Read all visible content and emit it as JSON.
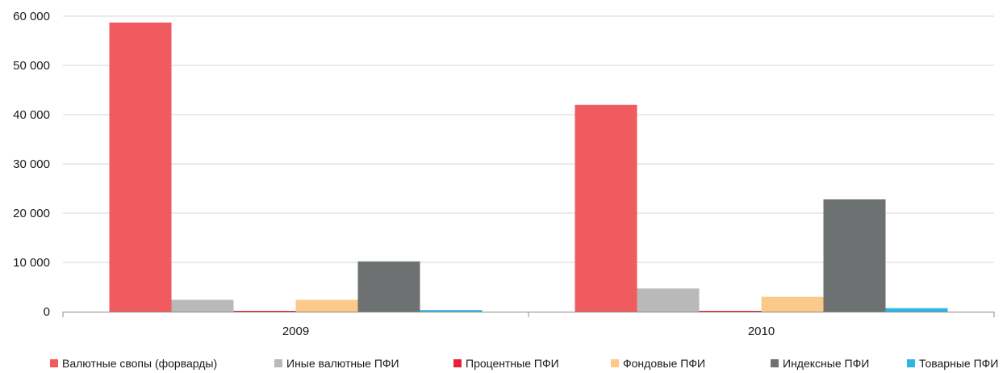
{
  "chart_data": {
    "type": "bar",
    "categories": [
      "2009",
      "2010"
    ],
    "series": [
      {
        "name": "Валютные свопы (форварды)",
        "color": "#ef5b5e",
        "values": [
          58700,
          42000
        ]
      },
      {
        "name": "Иные валютные ПФИ",
        "color": "#b9b9ba",
        "values": [
          2400,
          4700
        ]
      },
      {
        "name": "Процентные ПФИ",
        "color": "#e8213a",
        "values": [
          150,
          150
        ]
      },
      {
        "name": "Фондовые ПФИ",
        "color": "#fbc98a",
        "values": [
          2400,
          3000
        ]
      },
      {
        "name": "Индексные ПФИ",
        "color": "#6e7172",
        "values": [
          10200,
          22800
        ]
      },
      {
        "name": "Товарные ПФИ",
        "color": "#2bb6e6",
        "values": [
          300,
          700
        ]
      }
    ],
    "ylim": [
      0,
      60000
    ],
    "yticks": [
      "0",
      "10 000",
      "20 000",
      "30 000",
      "40 000",
      "50 000",
      "60 000"
    ],
    "grid": true,
    "legend_position": "bottom"
  }
}
